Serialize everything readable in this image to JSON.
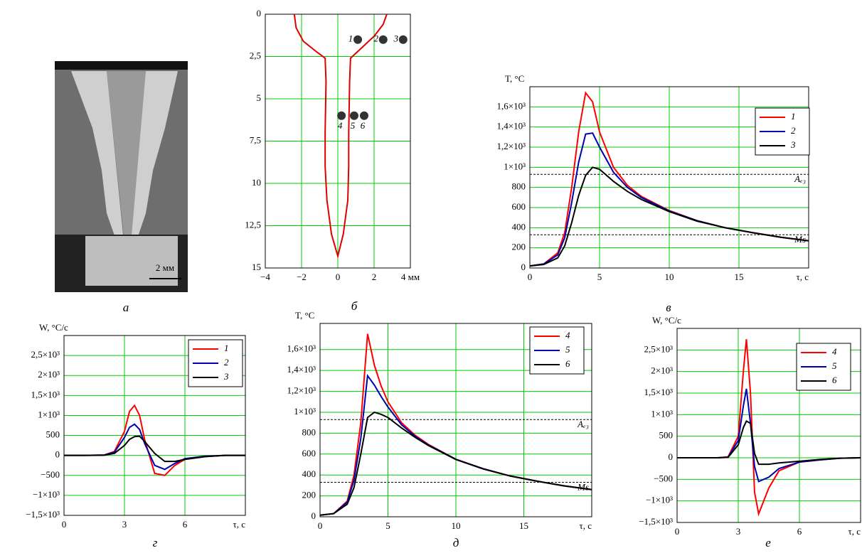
{
  "micrograph": {
    "scale_bar": "2 мм",
    "caption": "а"
  },
  "chart_data": [
    {
      "type": "line",
      "caption": "б",
      "color": "#e00000",
      "y_inverted": true,
      "grid": true,
      "xlim": [
        -4,
        4
      ],
      "ylim": [
        0,
        15
      ],
      "xticks": [
        {
          "value": -4,
          "label": "−4"
        },
        {
          "value": -2,
          "label": "−2"
        },
        0,
        2,
        {
          "value": 4,
          "label": "4 мм"
        }
      ],
      "yticks": [
        0,
        {
          "value": 2.5,
          "label": "2,5"
        },
        5,
        {
          "value": 7.5,
          "label": "7,5"
        },
        10,
        {
          "value": 12.5,
          "label": "12,5"
        },
        15
      ],
      "x": [
        -2.4,
        -2.3,
        -1.9,
        -1.2,
        -0.7,
        -0.65,
        -0.7,
        -0.7,
        -0.6,
        -0.35,
        0,
        0.3,
        0.55,
        0.6,
        0.6,
        0.65,
        0.7,
        1.3,
        2,
        2.5,
        2.7
      ],
      "values": [
        0,
        0.8,
        1.6,
        2.2,
        2.6,
        4,
        7,
        9,
        11,
        13,
        14.3,
        13,
        11,
        9,
        7,
        4,
        2.6,
        2,
        1.3,
        0.6,
        0
      ],
      "points": [
        {
          "label": "1",
          "x": 1.1,
          "y": 1.5
        },
        {
          "label": "2",
          "x": 2.5,
          "y": 1.5
        },
        {
          "label": "3",
          "x": 3.6,
          "y": 1.5
        },
        {
          "label": "4",
          "x": 0.2,
          "y": 6
        },
        {
          "label": "5",
          "x": 0.9,
          "y": 6
        },
        {
          "label": "6",
          "x": 1.45,
          "y": 6
        }
      ]
    },
    {
      "type": "line",
      "caption": "в",
      "ylabel": "T, °C",
      "xlabel": "τ, с",
      "grid": true,
      "xlim": [
        0,
        20
      ],
      "ylim": [
        0,
        1800
      ],
      "xticks": [
        0,
        5,
        10,
        15
      ],
      "yticks": [
        0,
        200,
        400,
        600,
        800,
        {
          "value": 1000,
          "label": "1×10³"
        },
        {
          "value": 1200,
          "label": "1,2×10³"
        },
        {
          "value": 1400,
          "label": "1,4×10³"
        },
        {
          "value": 1600,
          "label": "1,6×10³"
        }
      ],
      "reference_lines": [
        {
          "value": 930,
          "label": "Aₑ₃"
        },
        {
          "value": 330,
          "label": "Ms"
        }
      ],
      "x": [
        0,
        1,
        2,
        2.5,
        3,
        3.5,
        4,
        4.5,
        5,
        6,
        7,
        8,
        10,
        12,
        14,
        16,
        18,
        20
      ],
      "series": [
        {
          "name": "1",
          "color": "#ff0000",
          "values": [
            20,
            40,
            150,
            350,
            800,
            1350,
            1740,
            1650,
            1350,
            1000,
            820,
            710,
            570,
            470,
            400,
            350,
            305,
            270
          ]
        },
        {
          "name": "2",
          "color": "#0000b0",
          "values": [
            20,
            40,
            130,
            300,
            650,
            1050,
            1330,
            1340,
            1200,
            950,
            800,
            700,
            565,
            470,
            400,
            350,
            305,
            270
          ]
        },
        {
          "name": "3",
          "color": "#000000",
          "values": [
            20,
            35,
            100,
            220,
            450,
            720,
            920,
            1000,
            980,
            860,
            760,
            680,
            560,
            465,
            400,
            350,
            305,
            270
          ]
        }
      ]
    },
    {
      "type": "line",
      "caption": "г",
      "ylabel": "W, °C/с",
      "xlabel": "τ, с",
      "grid": true,
      "xlim": [
        0,
        9
      ],
      "ylim": [
        -1500,
        3000
      ],
      "xticks": [
        0,
        3,
        6
      ],
      "yticks": [
        {
          "value": -1500,
          "label": "−1,5×10³"
        },
        {
          "value": -1000,
          "label": "−1×10³"
        },
        {
          "value": -500,
          "label": "−500"
        },
        0,
        500,
        {
          "value": 1000,
          "label": "1×10³"
        },
        {
          "value": 1500,
          "label": "1,5×10³"
        },
        {
          "value": 2000,
          "label": "2×10³"
        },
        {
          "value": 2500,
          "label": "2,5×10³"
        }
      ],
      "x": [
        0,
        1,
        2,
        2.5,
        3,
        3.25,
        3.5,
        3.75,
        4,
        4.5,
        5,
        5.5,
        6,
        7,
        8,
        9
      ],
      "series": [
        {
          "name": "1",
          "color": "#ff0000",
          "values": [
            0,
            0,
            10,
            100,
            600,
            1100,
            1250,
            1000,
            400,
            -450,
            -500,
            -250,
            -100,
            -30,
            0,
            0
          ]
        },
        {
          "name": "2",
          "color": "#0000b0",
          "values": [
            0,
            0,
            10,
            80,
            450,
            700,
            780,
            650,
            300,
            -250,
            -350,
            -200,
            -80,
            -20,
            0,
            0
          ]
        },
        {
          "name": "3",
          "color": "#000000",
          "values": [
            0,
            0,
            5,
            50,
            250,
            400,
            470,
            480,
            350,
            50,
            -150,
            -150,
            -100,
            -30,
            0,
            0
          ]
        }
      ]
    },
    {
      "type": "line",
      "caption": "д",
      "ylabel": "T, °C",
      "xlabel": "τ, с",
      "grid": true,
      "xlim": [
        0,
        20
      ],
      "ylim": [
        0,
        1850
      ],
      "xticks": [
        0,
        5,
        10,
        15
      ],
      "yticks": [
        0,
        200,
        400,
        600,
        800,
        {
          "value": 1000,
          "label": "1×10³"
        },
        {
          "value": 1200,
          "label": "1,2×10³"
        },
        {
          "value": 1400,
          "label": "1,4×10³"
        },
        {
          "value": 1600,
          "label": "1,6×10³"
        }
      ],
      "reference_lines": [
        {
          "value": 930,
          "label": "Aₑ₃"
        },
        {
          "value": 330,
          "label": "Ms"
        }
      ],
      "x": [
        0,
        1,
        2,
        2.5,
        3,
        3.5,
        4,
        4.5,
        5,
        6,
        7,
        8,
        10,
        12,
        14,
        16,
        18,
        20
      ],
      "series": [
        {
          "name": "4",
          "color": "#ff0000",
          "values": [
            15,
            30,
            150,
            400,
            900,
            1750,
            1450,
            1250,
            1100,
            900,
            780,
            690,
            550,
            460,
            390,
            340,
            295,
            260
          ]
        },
        {
          "name": "5",
          "color": "#0000b0",
          "values": [
            15,
            30,
            140,
            350,
            750,
            1350,
            1260,
            1150,
            1050,
            880,
            770,
            685,
            550,
            460,
            390,
            340,
            295,
            260
          ]
        },
        {
          "name": "6",
          "color": "#000000",
          "values": [
            15,
            30,
            120,
            280,
            600,
            950,
            1000,
            980,
            950,
            850,
            760,
            680,
            548,
            458,
            390,
            340,
            295,
            260
          ]
        }
      ]
    },
    {
      "type": "line",
      "caption": "е",
      "ylabel": "W, °C/с",
      "xlabel": "τ, с",
      "grid": true,
      "xlim": [
        0,
        9
      ],
      "ylim": [
        -1500,
        3000
      ],
      "xticks": [
        0,
        3,
        6
      ],
      "yticks": [
        {
          "value": -1500,
          "label": "−1,5×10³"
        },
        {
          "value": -1000,
          "label": "−1×10³"
        },
        {
          "value": -500,
          "label": "−500"
        },
        0,
        500,
        {
          "value": 1000,
          "label": "1×10³"
        },
        {
          "value": 1500,
          "label": "1,5×10³"
        },
        {
          "value": 2000,
          "label": "2×10³"
        },
        {
          "value": 2500,
          "label": "2,5×10³"
        }
      ],
      "x": [
        0,
        1,
        2,
        2.5,
        3,
        3.25,
        3.4,
        3.6,
        3.8,
        4,
        4.5,
        5,
        6,
        7,
        8,
        9
      ],
      "series": [
        {
          "name": "4",
          "color": "#ff0000",
          "values": [
            0,
            0,
            0,
            20,
            500,
            2000,
            2750,
            1500,
            -800,
            -1300,
            -700,
            -300,
            -100,
            -50,
            -10,
            0
          ]
        },
        {
          "name": "5",
          "color": "#0000b0",
          "values": [
            0,
            0,
            0,
            15,
            400,
            1200,
            1600,
            800,
            -200,
            -550,
            -450,
            -250,
            -100,
            -50,
            -10,
            0
          ]
        },
        {
          "name": "6",
          "color": "#000000",
          "values": [
            0,
            0,
            0,
            10,
            300,
            700,
            850,
            800,
            100,
            -150,
            -150,
            -120,
            -80,
            -40,
            -10,
            0
          ]
        }
      ]
    }
  ]
}
